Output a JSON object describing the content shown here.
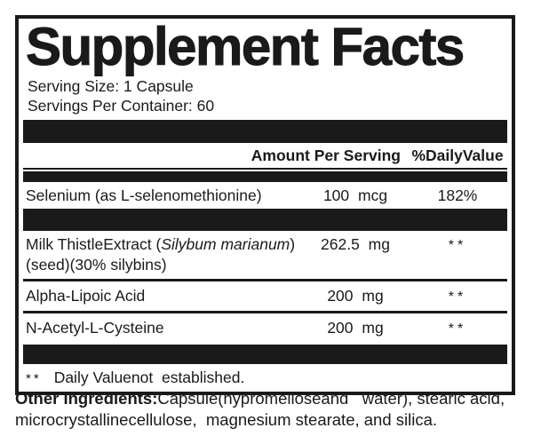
{
  "colors": {
    "ink": "#1a1a1a",
    "background": "#ffffff"
  },
  "panel": {
    "title": "Supplement Facts",
    "serving_size": "Serving Size: 1 Capsule",
    "servings_per_container": "Servings Per Container: 60",
    "columns": {
      "amount_header": "Amount Per Serving",
      "daily_value_header": "%DailyValue"
    },
    "rows": [
      {
        "name": "Selenium (as L-selenomethionine)",
        "amount": "100 mcg",
        "daily_value": "182%"
      },
      {
        "name_pre": "Milk ThistleExtract (",
        "name_italic": "Silybum marianum",
        "name_post": ")",
        "name_line2": "(seed)(30% silybins)",
        "amount": "262.5 mg",
        "daily_value": "**"
      },
      {
        "name": "Alpha-Lipoic Acid",
        "amount": "200 mg",
        "daily_value": "**"
      },
      {
        "name": "N-Acetyl-L-Cysteine",
        "amount": "200 mg",
        "daily_value": "**"
      }
    ],
    "footnote": {
      "marker": "**",
      "text": "Daily Valuenot  established."
    },
    "other_ingredients": {
      "label": "Other Ingredients:",
      "text": "Capsule(hypromelloseand   water), stearic acid, microcrystallinecellulose,  magnesium stearate, and silica."
    }
  }
}
